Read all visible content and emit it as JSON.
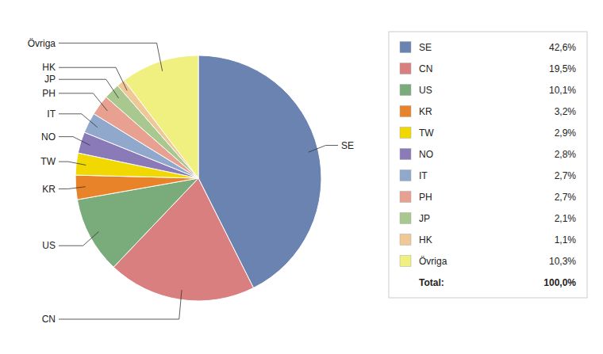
{
  "chart_data": {
    "type": "pie",
    "categories": [
      "SE",
      "CN",
      "US",
      "KR",
      "TW",
      "NO",
      "IT",
      "PH",
      "JP",
      "HK",
      "Övriga"
    ],
    "values": [
      42.6,
      19.5,
      10.1,
      3.2,
      2.9,
      2.8,
      2.7,
      2.7,
      2.1,
      1.1,
      10.3
    ],
    "value_labels": [
      "42,6%",
      "19,5%",
      "10,1%",
      "3,2%",
      "2,9%",
      "2,8%",
      "2,7%",
      "2,7%",
      "2,1%",
      "1,1%",
      "10,3%"
    ],
    "colors": [
      "#6b83b0",
      "#d97f7f",
      "#7aab7a",
      "#e8832a",
      "#f0d800",
      "#8a7ab8",
      "#8fa8cc",
      "#e8a090",
      "#a8c890",
      "#f0c898",
      "#f0f080"
    ],
    "total": {
      "name": "Total:",
      "value": 100.0,
      "label": "100,0%"
    }
  }
}
